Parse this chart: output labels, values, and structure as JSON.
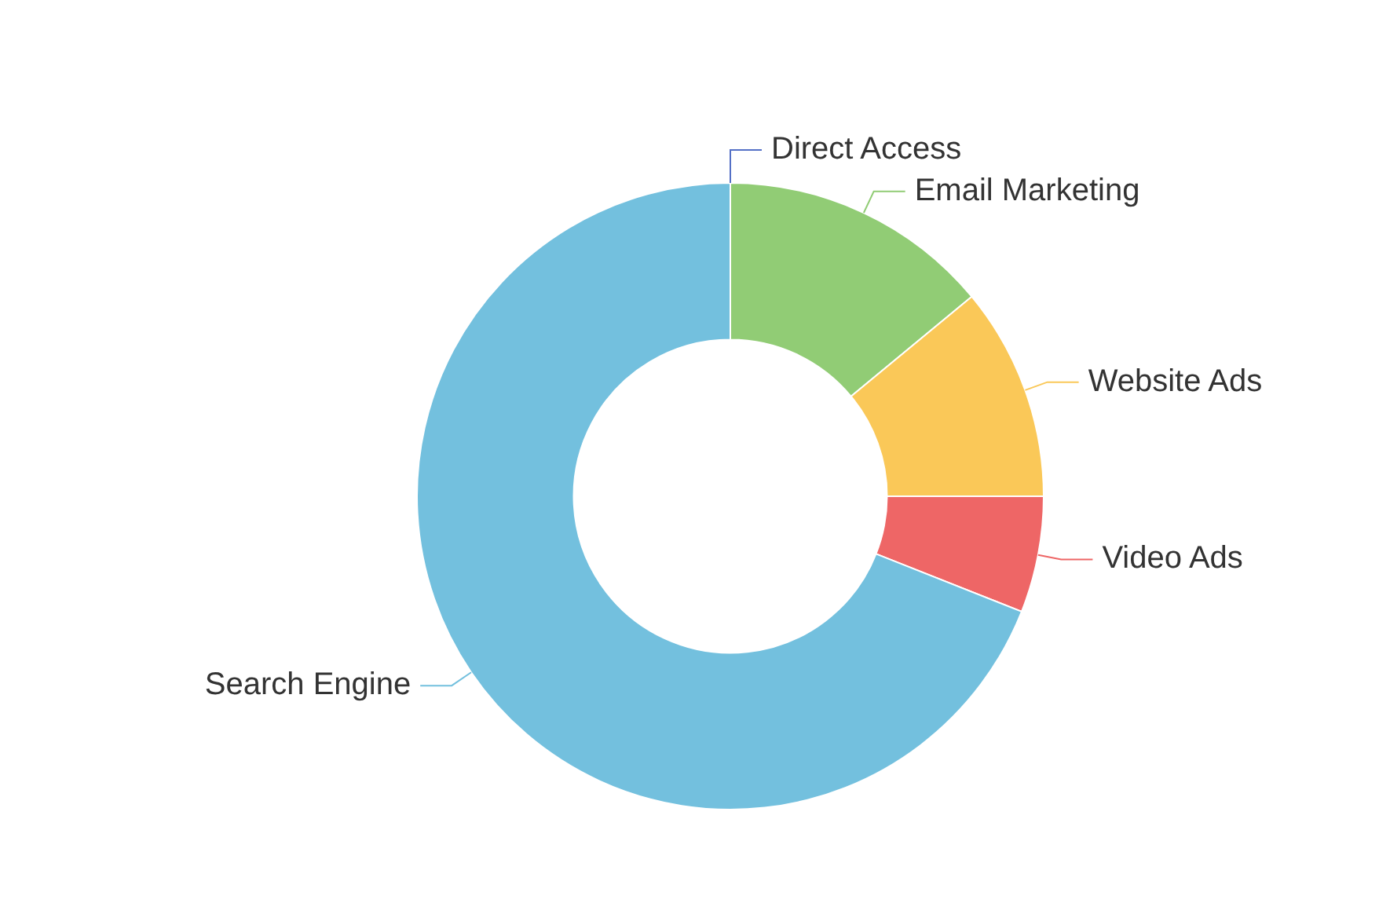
{
  "chart_data": {
    "type": "donut",
    "categories": [
      "Direct Access",
      "Email Marketing",
      "Website Ads",
      "Video Ads",
      "Search Engine"
    ],
    "values": [
      0,
      14,
      11,
      6,
      69
    ],
    "colors": [
      "#5470c6",
      "#91cc75",
      "#fac858",
      "#ee6666",
      "#73c0de"
    ]
  }
}
